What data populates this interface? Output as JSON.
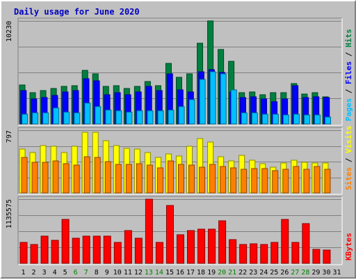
{
  "title": "Daily usage for June 2020",
  "colors": {
    "hits": "#008040",
    "files": "#0000ff",
    "pages": "#00c0ff",
    "visits": "#ffff00",
    "sites": "#ff8000",
    "kbytes": "#ff0000",
    "weekday_label": "#000000",
    "weekend_label": "#008000"
  },
  "chart_data": [
    {
      "type": "bar",
      "panel": "hits-files-pages",
      "x": [
        "1",
        "2",
        "3",
        "4",
        "5",
        "6",
        "7",
        "8",
        "9",
        "10",
        "11",
        "12",
        "13",
        "14",
        "15",
        "16",
        "17",
        "18",
        "19",
        "20",
        "21",
        "22",
        "23",
        "24",
        "25",
        "26",
        "27",
        "28",
        "29",
        "30",
        "31"
      ],
      "weekend_days": [
        6,
        7,
        13,
        14,
        20,
        21,
        27,
        28
      ],
      "ymax_label": "10230",
      "ylim": [
        0,
        10230
      ],
      "series": [
        {
          "name": "Hits",
          "values": [
            3900,
            3100,
            3300,
            3500,
            3700,
            3800,
            5300,
            5000,
            3700,
            3800,
            3500,
            3700,
            4200,
            3800,
            6000,
            4600,
            5000,
            8000,
            10230,
            7400,
            6200,
            3100,
            3200,
            2900,
            3100,
            3100,
            4000,
            3000,
            3100,
            2700,
            0
          ]
        },
        {
          "name": "Files",
          "values": [
            3300,
            2500,
            2600,
            2800,
            3200,
            3300,
            4500,
            4300,
            2900,
            3100,
            2900,
            3200,
            3700,
            3300,
            5000,
            3400,
            3200,
            5200,
            5400,
            5100,
            3200,
            2600,
            2700,
            2500,
            2200,
            2500,
            3800,
            2600,
            2700,
            2600,
            0
          ]
        },
        {
          "name": "Pages",
          "values": [
            1000,
            1100,
            1100,
            1600,
            1200,
            1100,
            2100,
            1700,
            1400,
            1300,
            1200,
            1300,
            1300,
            1300,
            1400,
            1700,
            2400,
            4400,
            5200,
            5000,
            3400,
            1100,
            1100,
            1000,
            1000,
            900,
            1000,
            900,
            900,
            700,
            0
          ]
        }
      ],
      "legend": [
        "Pages",
        "Files",
        "Hits"
      ]
    },
    {
      "type": "bar",
      "panel": "visits-sites",
      "x": [
        "1",
        "2",
        "3",
        "4",
        "5",
        "6",
        "7",
        "8",
        "9",
        "10",
        "11",
        "12",
        "13",
        "14",
        "15",
        "16",
        "17",
        "18",
        "19",
        "20",
        "21",
        "22",
        "23",
        "24",
        "25",
        "26",
        "27",
        "28",
        "29",
        "30",
        "31"
      ],
      "ymax_label": "797",
      "ylim": [
        0,
        797
      ],
      "series": [
        {
          "name": "Visits",
          "values": [
            560,
            510,
            600,
            590,
            510,
            590,
            770,
            770,
            660,
            600,
            570,
            560,
            510,
            450,
            500,
            470,
            590,
            690,
            650,
            460,
            410,
            480,
            420,
            370,
            330,
            380,
            420,
            390,
            380,
            380,
            0
          ]
        },
        {
          "name": "Sites",
          "values": [
            450,
            390,
            390,
            410,
            370,
            350,
            460,
            450,
            400,
            360,
            360,
            370,
            350,
            320,
            410,
            360,
            350,
            330,
            360,
            340,
            320,
            300,
            310,
            310,
            280,
            300,
            340,
            300,
            340,
            300,
            0
          ]
        }
      ],
      "legend": [
        "Sites",
        "Visits"
      ]
    },
    {
      "type": "bar",
      "panel": "kbytes",
      "x": [
        "1",
        "2",
        "3",
        "4",
        "5",
        "6",
        "7",
        "8",
        "9",
        "10",
        "11",
        "12",
        "13",
        "14",
        "15",
        "16",
        "17",
        "18",
        "19",
        "20",
        "21",
        "22",
        "23",
        "24",
        "25",
        "26",
        "27",
        "28",
        "29",
        "30",
        "31"
      ],
      "ymax_label": "1135575",
      "ylim": [
        0,
        1135575
      ],
      "series": [
        {
          "name": "KBytes",
          "values": [
            375000,
            330000,
            482000,
            410000,
            780000,
            450000,
            482000,
            482000,
            482000,
            375000,
            585000,
            450000,
            1135575,
            375000,
            1020000,
            500000,
            585000,
            608000,
            608000,
            750000,
            420000,
            330000,
            345000,
            330000,
            375000,
            780000,
            375000,
            700000,
            250000,
            230000,
            0
          ]
        }
      ],
      "legend": [
        "KBytes"
      ]
    }
  ]
}
